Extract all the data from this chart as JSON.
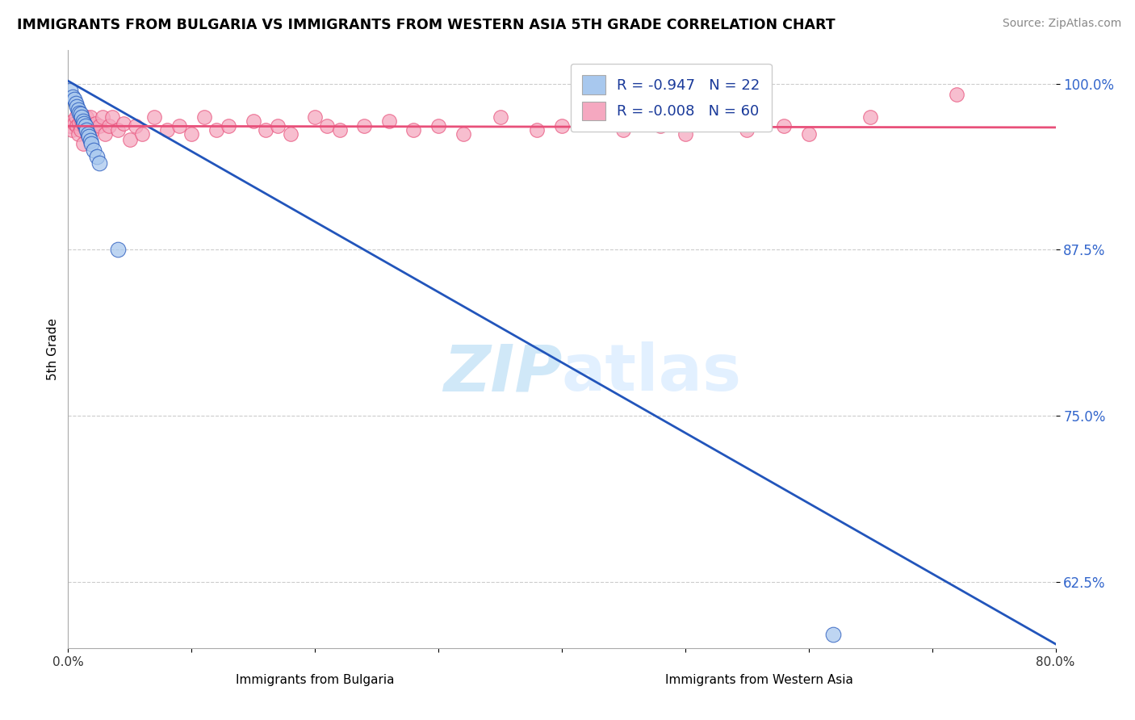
{
  "title": "IMMIGRANTS FROM BULGARIA VS IMMIGRANTS FROM WESTERN ASIA 5TH GRADE CORRELATION CHART",
  "source_text": "Source: ZipAtlas.com",
  "ylabel": "5th Grade",
  "xlabel_bulgaria": "Immigrants from Bulgaria",
  "xlabel_western_asia": "Immigrants from Western Asia",
  "r_bulgaria": -0.947,
  "n_bulgaria": 22,
  "r_western_asia": -0.008,
  "n_western_asia": 60,
  "xlim": [
    0.0,
    0.8
  ],
  "ylim": [
    0.575,
    1.025
  ],
  "yticks": [
    0.625,
    0.75,
    0.875,
    1.0
  ],
  "ytick_labels": [
    "62.5%",
    "75.0%",
    "87.5%",
    "100.0%"
  ],
  "xticks": [
    0.0,
    0.1,
    0.2,
    0.3,
    0.4,
    0.5,
    0.6,
    0.7,
    0.8
  ],
  "xtick_labels": [
    "0.0%",
    "",
    "",
    "",
    "",
    "",
    "",
    "",
    "80.0%"
  ],
  "color_bulgaria": "#a8c8ee",
  "color_western_asia": "#f5a8c0",
  "line_color_bulgaria": "#2255bb",
  "line_color_western_asia": "#e8507a",
  "watermark_zip": "ZIP",
  "watermark_atlas": "atlas",
  "watermark_color": "#d0e8f8",
  "bulgaria_x": [
    0.002,
    0.004,
    0.005,
    0.006,
    0.007,
    0.008,
    0.009,
    0.01,
    0.011,
    0.012,
    0.013,
    0.014,
    0.015,
    0.016,
    0.017,
    0.018,
    0.019,
    0.021,
    0.023,
    0.025,
    0.04,
    0.62
  ],
  "bulgaria_y": [
    0.995,
    0.99,
    0.988,
    0.985,
    0.983,
    0.98,
    0.978,
    0.977,
    0.975,
    0.972,
    0.97,
    0.968,
    0.965,
    0.962,
    0.96,
    0.957,
    0.955,
    0.95,
    0.945,
    0.94,
    0.875,
    0.585
  ],
  "western_asia_x": [
    0.002,
    0.003,
    0.004,
    0.005,
    0.006,
    0.007,
    0.008,
    0.009,
    0.01,
    0.011,
    0.012,
    0.013,
    0.015,
    0.016,
    0.017,
    0.018,
    0.02,
    0.022,
    0.025,
    0.028,
    0.03,
    0.033,
    0.036,
    0.04,
    0.045,
    0.05,
    0.055,
    0.06,
    0.07,
    0.08,
    0.09,
    0.1,
    0.11,
    0.12,
    0.13,
    0.15,
    0.16,
    0.17,
    0.18,
    0.2,
    0.21,
    0.22,
    0.24,
    0.26,
    0.28,
    0.3,
    0.32,
    0.35,
    0.38,
    0.4,
    0.42,
    0.45,
    0.48,
    0.5,
    0.52,
    0.55,
    0.58,
    0.6,
    0.65,
    0.72
  ],
  "western_asia_y": [
    0.968,
    0.965,
    0.972,
    0.97,
    0.975,
    0.968,
    0.962,
    0.97,
    0.965,
    0.972,
    0.955,
    0.968,
    0.975,
    0.965,
    0.97,
    0.975,
    0.965,
    0.97,
    0.968,
    0.975,
    0.962,
    0.968,
    0.975,
    0.965,
    0.97,
    0.958,
    0.968,
    0.962,
    0.975,
    0.965,
    0.968,
    0.962,
    0.975,
    0.965,
    0.968,
    0.972,
    0.965,
    0.968,
    0.962,
    0.975,
    0.968,
    0.965,
    0.968,
    0.972,
    0.965,
    0.968,
    0.962,
    0.975,
    0.965,
    0.968,
    0.972,
    0.965,
    0.968,
    0.962,
    0.975,
    0.965,
    0.968,
    0.962,
    0.975,
    0.992
  ],
  "trend_blue_x0": 0.0,
  "trend_blue_y0": 1.002,
  "trend_blue_x1": 0.8,
  "trend_blue_y1": 0.578,
  "trend_pink_x0": 0.0,
  "trend_pink_y0": 0.968,
  "trend_pink_x1": 0.8,
  "trend_pink_y1": 0.967
}
